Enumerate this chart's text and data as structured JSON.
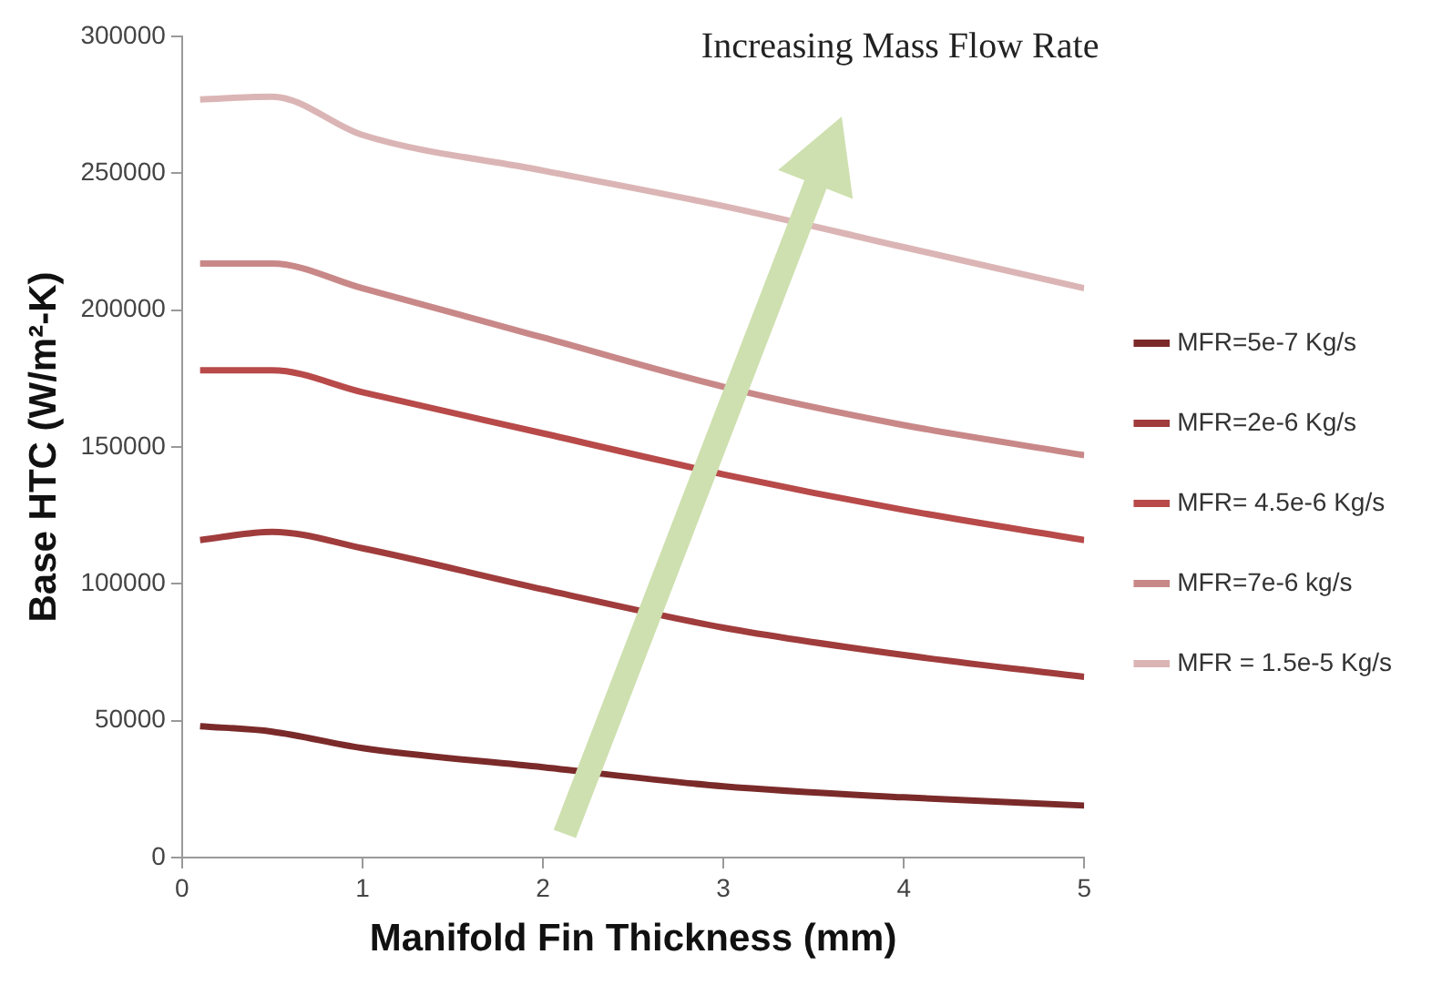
{
  "chart_data": {
    "type": "line",
    "xlabel": "Manifold Fin Thickness (mm)",
    "ylabel": "Base HTC (W/m²-K)",
    "annotations": [
      "Increasing Mass Flow Rate"
    ],
    "x": [
      0.1,
      0.5,
      1,
      2,
      3,
      4,
      5
    ],
    "series": [
      {
        "name": "MFR=5e-7 Kg/s",
        "color": "#7b2a2a",
        "values": [
          48000,
          46000,
          40000,
          33000,
          26000,
          22000,
          19000
        ]
      },
      {
        "name": "MFR=2e-6 Kg/s",
        "color": "#a03c3c",
        "values": [
          116000,
          119000,
          113000,
          98000,
          84000,
          74000,
          66000
        ]
      },
      {
        "name": "MFR= 4.5e-6 Kg/s",
        "color": "#b84a4a",
        "values": [
          178000,
          178000,
          170000,
          155000,
          140000,
          127000,
          116000
        ]
      },
      {
        "name": "MFR=7e-6 kg/s",
        "color": "#c98888",
        "values": [
          217000,
          217000,
          208000,
          190000,
          172000,
          158000,
          147000
        ]
      },
      {
        "name": "MFR = 1.5e-5 Kg/s",
        "color": "#dbb5b5",
        "values": [
          277000,
          278000,
          264000,
          251000,
          238000,
          223000,
          208000
        ]
      }
    ],
    "xlim": [
      0,
      5
    ],
    "xticks": [
      0,
      1,
      2,
      3,
      4,
      5
    ],
    "ylim": [
      0,
      300000
    ],
    "yticks": [
      0,
      50000,
      100000,
      150000,
      200000,
      250000,
      300000
    ],
    "grid": false,
    "legend": "right",
    "marker": "none",
    "line_style": "solid"
  }
}
